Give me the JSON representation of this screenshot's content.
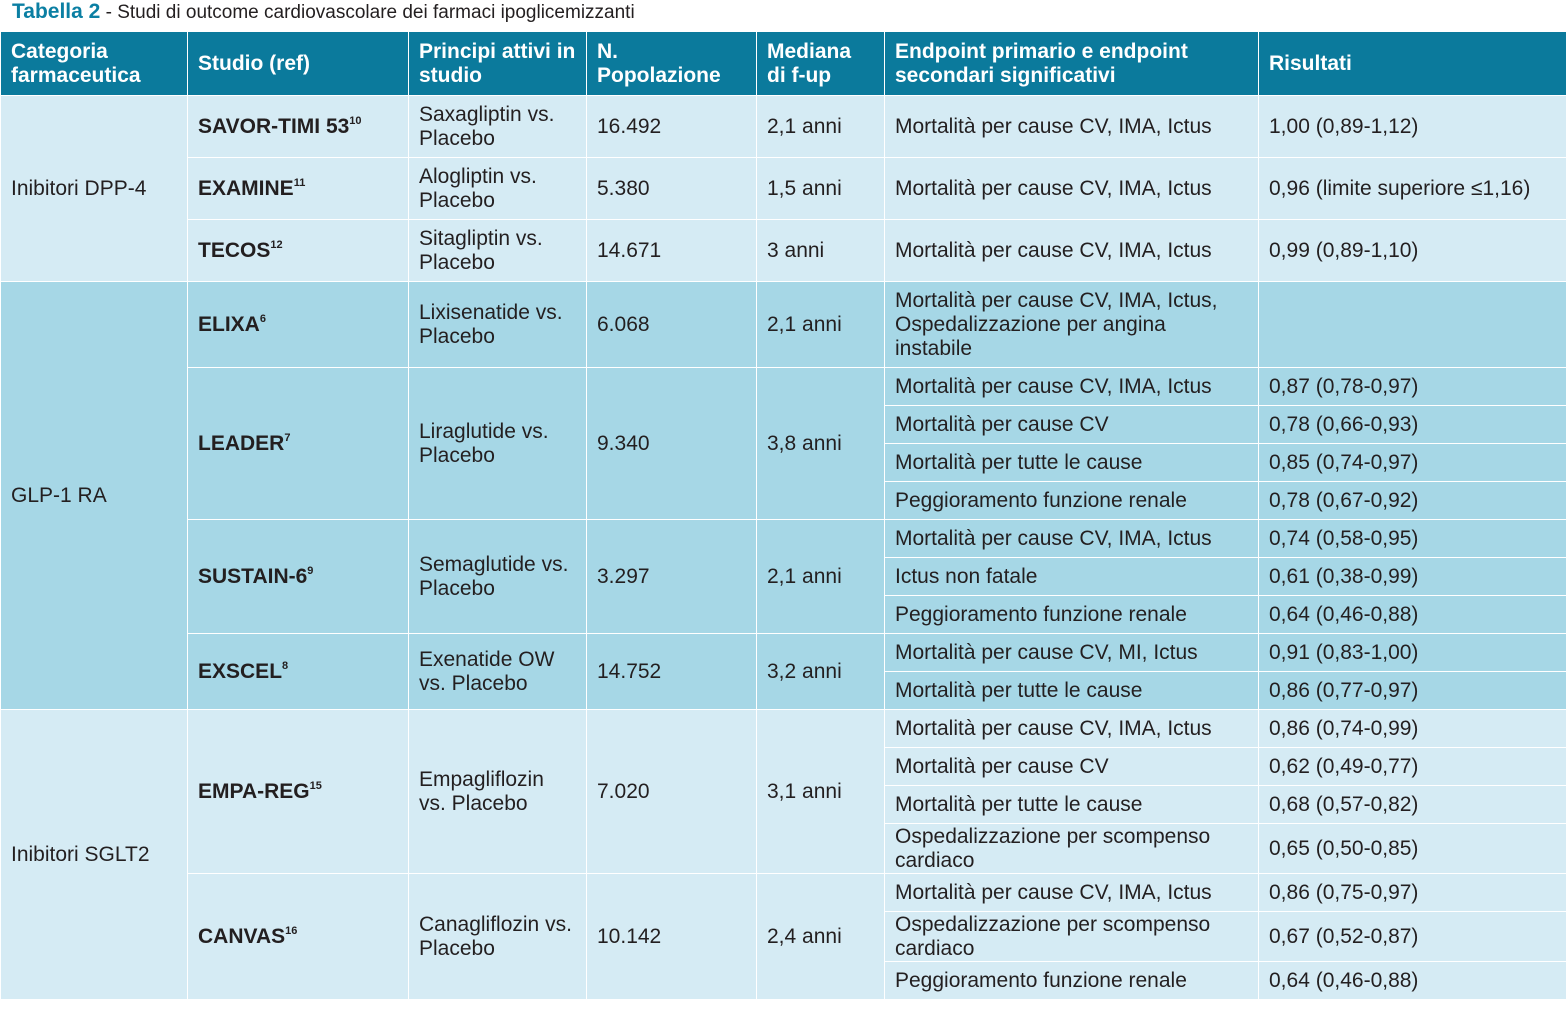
{
  "caption": {
    "label": "Tabella 2",
    "separator": " - ",
    "text": "Studi di outcome cardiovascolare dei farmaci ipoglicemizzanti"
  },
  "headers": [
    "Categoria farmaceutica",
    "Studio (ref)",
    "Principi attivi in studio",
    "N. Popolazione",
    "Mediana di f-up",
    "Endpoint primario e endpoint secondari significativi",
    "Risultati"
  ],
  "groups": [
    {
      "category": "Inibitori DPP-4",
      "studies": [
        {
          "name": "SAVOR-TIMI 53",
          "ref": "10",
          "drug": "Saxagliptin vs. Placebo",
          "n": "16.492",
          "fup": "2,1 anni",
          "outcomes": [
            {
              "endpoint": "Mortalità per cause CV, IMA, Ictus",
              "result": "1,00 (0,89-1,12)"
            }
          ]
        },
        {
          "name": "EXAMINE",
          "ref": "11",
          "drug": "Alogliptin vs. Placebo",
          "n": "5.380",
          "fup": "1,5 anni",
          "outcomes": [
            {
              "endpoint": "Mortalità per cause CV, IMA, Ictus",
              "result": "0,96 (limite superiore ≤1,16)"
            }
          ]
        },
        {
          "name": "TECOS",
          "ref": "12",
          "drug": "Sitagliptin vs. Placebo",
          "n": "14.671",
          "fup": "3 anni",
          "outcomes": [
            {
              "endpoint": "Mortalità per cause CV, IMA, Ictus",
              "result": "0,99 (0,89-1,10)"
            }
          ]
        }
      ]
    },
    {
      "category": "GLP-1 RA",
      "studies": [
        {
          "name": "ELIXA",
          "ref": "6",
          "drug": "Lixisenatide vs. Placebo",
          "n": "6.068",
          "fup": "2,1 anni",
          "outcomes": [
            {
              "endpoint": "Mortalità per cause CV, IMA, Ictus, Ospedalizzazione per angina instabile",
              "result": ""
            }
          ]
        },
        {
          "name": "LEADER",
          "ref": "7",
          "drug": "Liraglutide vs. Placebo",
          "n": "9.340",
          "fup": "3,8 anni",
          "outcomes": [
            {
              "endpoint": "Mortalità per cause CV, IMA, Ictus",
              "result": "0,87 (0,78-0,97)"
            },
            {
              "endpoint": "Mortalità per cause CV",
              "result": "0,78 (0,66-0,93)"
            },
            {
              "endpoint": "Mortalità per tutte le cause",
              "result": "0,85 (0,74-0,97)"
            },
            {
              "endpoint": "Peggioramento funzione renale",
              "result": "0,78 (0,67-0,92)"
            }
          ]
        },
        {
          "name": "SUSTAIN-6",
          "ref": "9",
          "drug": "Semaglutide vs. Placebo",
          "n": "3.297",
          "fup": "2,1 anni",
          "outcomes": [
            {
              "endpoint": "Mortalità per cause CV, IMA, Ictus",
              "result": "0,74 (0,58-0,95)"
            },
            {
              "endpoint": "Ictus non fatale",
              "result": "0,61 (0,38-0,99)"
            },
            {
              "endpoint": "Peggioramento funzione renale",
              "result": "0,64 (0,46-0,88)"
            }
          ]
        },
        {
          "name": "EXSCEL",
          "ref": "8",
          "drug": "Exenatide OW vs. Placebo",
          "n": "14.752",
          "fup": "3,2 anni",
          "outcomes": [
            {
              "endpoint": "Mortalità per cause CV, MI, Ictus",
              "result": "0,91 (0,83-1,00)"
            },
            {
              "endpoint": "Mortalità per tutte le cause",
              "result": "0,86 (0,77-0,97)"
            }
          ]
        }
      ]
    },
    {
      "category": "Inibitori SGLT2",
      "studies": [
        {
          "name": "EMPA-REG",
          "ref": "15",
          "drug": "Empagliflozin vs. Placebo",
          "n": "7.020",
          "fup": "3,1 anni",
          "outcomes": [
            {
              "endpoint": "Mortalità per cause CV, IMA, Ictus",
              "result": "0,86 (0,74-0,99)"
            },
            {
              "endpoint": "Mortalità per cause CV",
              "result": "0,62 (0,49-0,77)"
            },
            {
              "endpoint": "Mortalità per tutte le cause",
              "result": "0,68 (0,57-0,82)"
            },
            {
              "endpoint": "Ospedalizzazione per scompenso cardiaco",
              "result": "0,65 (0,50-0,85)"
            }
          ]
        },
        {
          "name": "CANVAS",
          "ref": "16",
          "drug": "Canagliflozin vs. Placebo",
          "n": "10.142",
          "fup": "2,4 anni",
          "outcomes": [
            {
              "endpoint": "Mortalità per cause CV, IMA, Ictus",
              "result": "0,86 (0,75-0,97)"
            },
            {
              "endpoint": "Ospedalizzazione per scompenso cardiaco",
              "result": "0,67 (0,52-0,87)"
            },
            {
              "endpoint": "Peggioramento funzione renale",
              "result": "0,64 (0,46-0,88)"
            }
          ]
        }
      ]
    }
  ]
}
